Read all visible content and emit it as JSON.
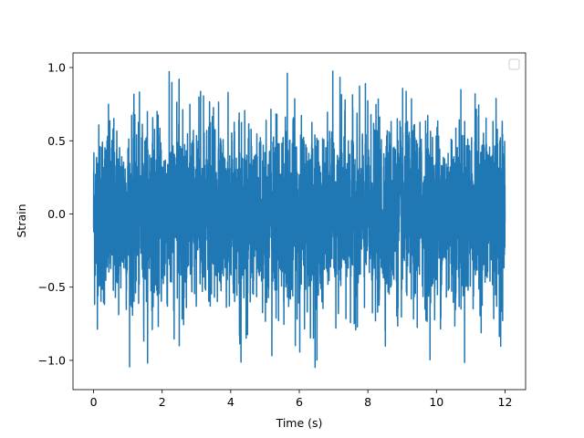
{
  "chart_data": {
    "type": "line",
    "title": "",
    "xlabel": "Time (s)",
    "ylabel": "Strain",
    "xlim": [
      -0.6,
      12.6
    ],
    "ylim": [
      -1.2,
      1.1
    ],
    "xticks": [
      0,
      2,
      4,
      6,
      8,
      10,
      12
    ],
    "xtick_labels": [
      "0",
      "2",
      "4",
      "6",
      "8",
      "10",
      "12"
    ],
    "yticks": [
      1.0,
      0.5,
      0.0,
      -0.5,
      -1.0
    ],
    "ytick_labels": [
      "1.0",
      "0.5",
      "0.0",
      "−0.5",
      "−1.0"
    ],
    "grid": false,
    "legend": {
      "placement": "upper right",
      "entries": []
    },
    "series": [
      {
        "color": "#1f77b4",
        "x_range": [
          0,
          12
        ],
        "y_range": [
          -1.09,
          0.98
        ],
        "typical_band": [
          -0.6,
          0.6
        ],
        "description_kind": "noisy oscillatory signal"
      }
    ]
  }
}
